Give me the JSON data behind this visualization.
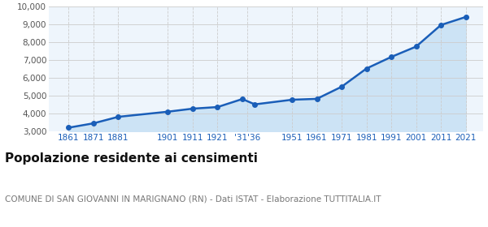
{
  "years": [
    1861,
    1871,
    1881,
    1901,
    1911,
    1921,
    1931,
    1936,
    1951,
    1961,
    1971,
    1981,
    1991,
    2001,
    2011,
    2021
  ],
  "population": [
    3224,
    3468,
    3832,
    4120,
    4290,
    4380,
    4830,
    4530,
    4790,
    4840,
    5520,
    6540,
    7190,
    7770,
    8980,
    9430
  ],
  "ylim": [
    3000,
    10000
  ],
  "yticks": [
    3000,
    4000,
    5000,
    6000,
    7000,
    8000,
    9000,
    10000
  ],
  "xlim_left": 1853,
  "xlim_right": 2028,
  "x_tick_pos": [
    1861,
    1871,
    1881,
    1901,
    1911,
    1921,
    1933,
    1951,
    1961,
    1971,
    1981,
    1991,
    2001,
    2011,
    2021
  ],
  "x_tick_labels": [
    "1861",
    "1871",
    "1881",
    "1901",
    "1911",
    "1921",
    "'31'36",
    "1951",
    "1961",
    "1971",
    "1981",
    "1991",
    "2001",
    "2011",
    "2021"
  ],
  "line_color": "#1a5eb8",
  "fill_color": "#cce3f5",
  "marker_color": "#1a5eb8",
  "grid_color": "#cccccc",
  "background_color": "#eef5fc",
  "title": "Popolazione residente ai censimenti",
  "subtitle": "COMUNE DI SAN GIOVANNI IN MARIGNANO (RN) - Dati ISTAT - Elaborazione TUTTITALIA.IT",
  "title_fontsize": 11,
  "subtitle_fontsize": 7.5,
  "tick_label_color": "#1a5eb8",
  "ytick_label_color": "#555555"
}
